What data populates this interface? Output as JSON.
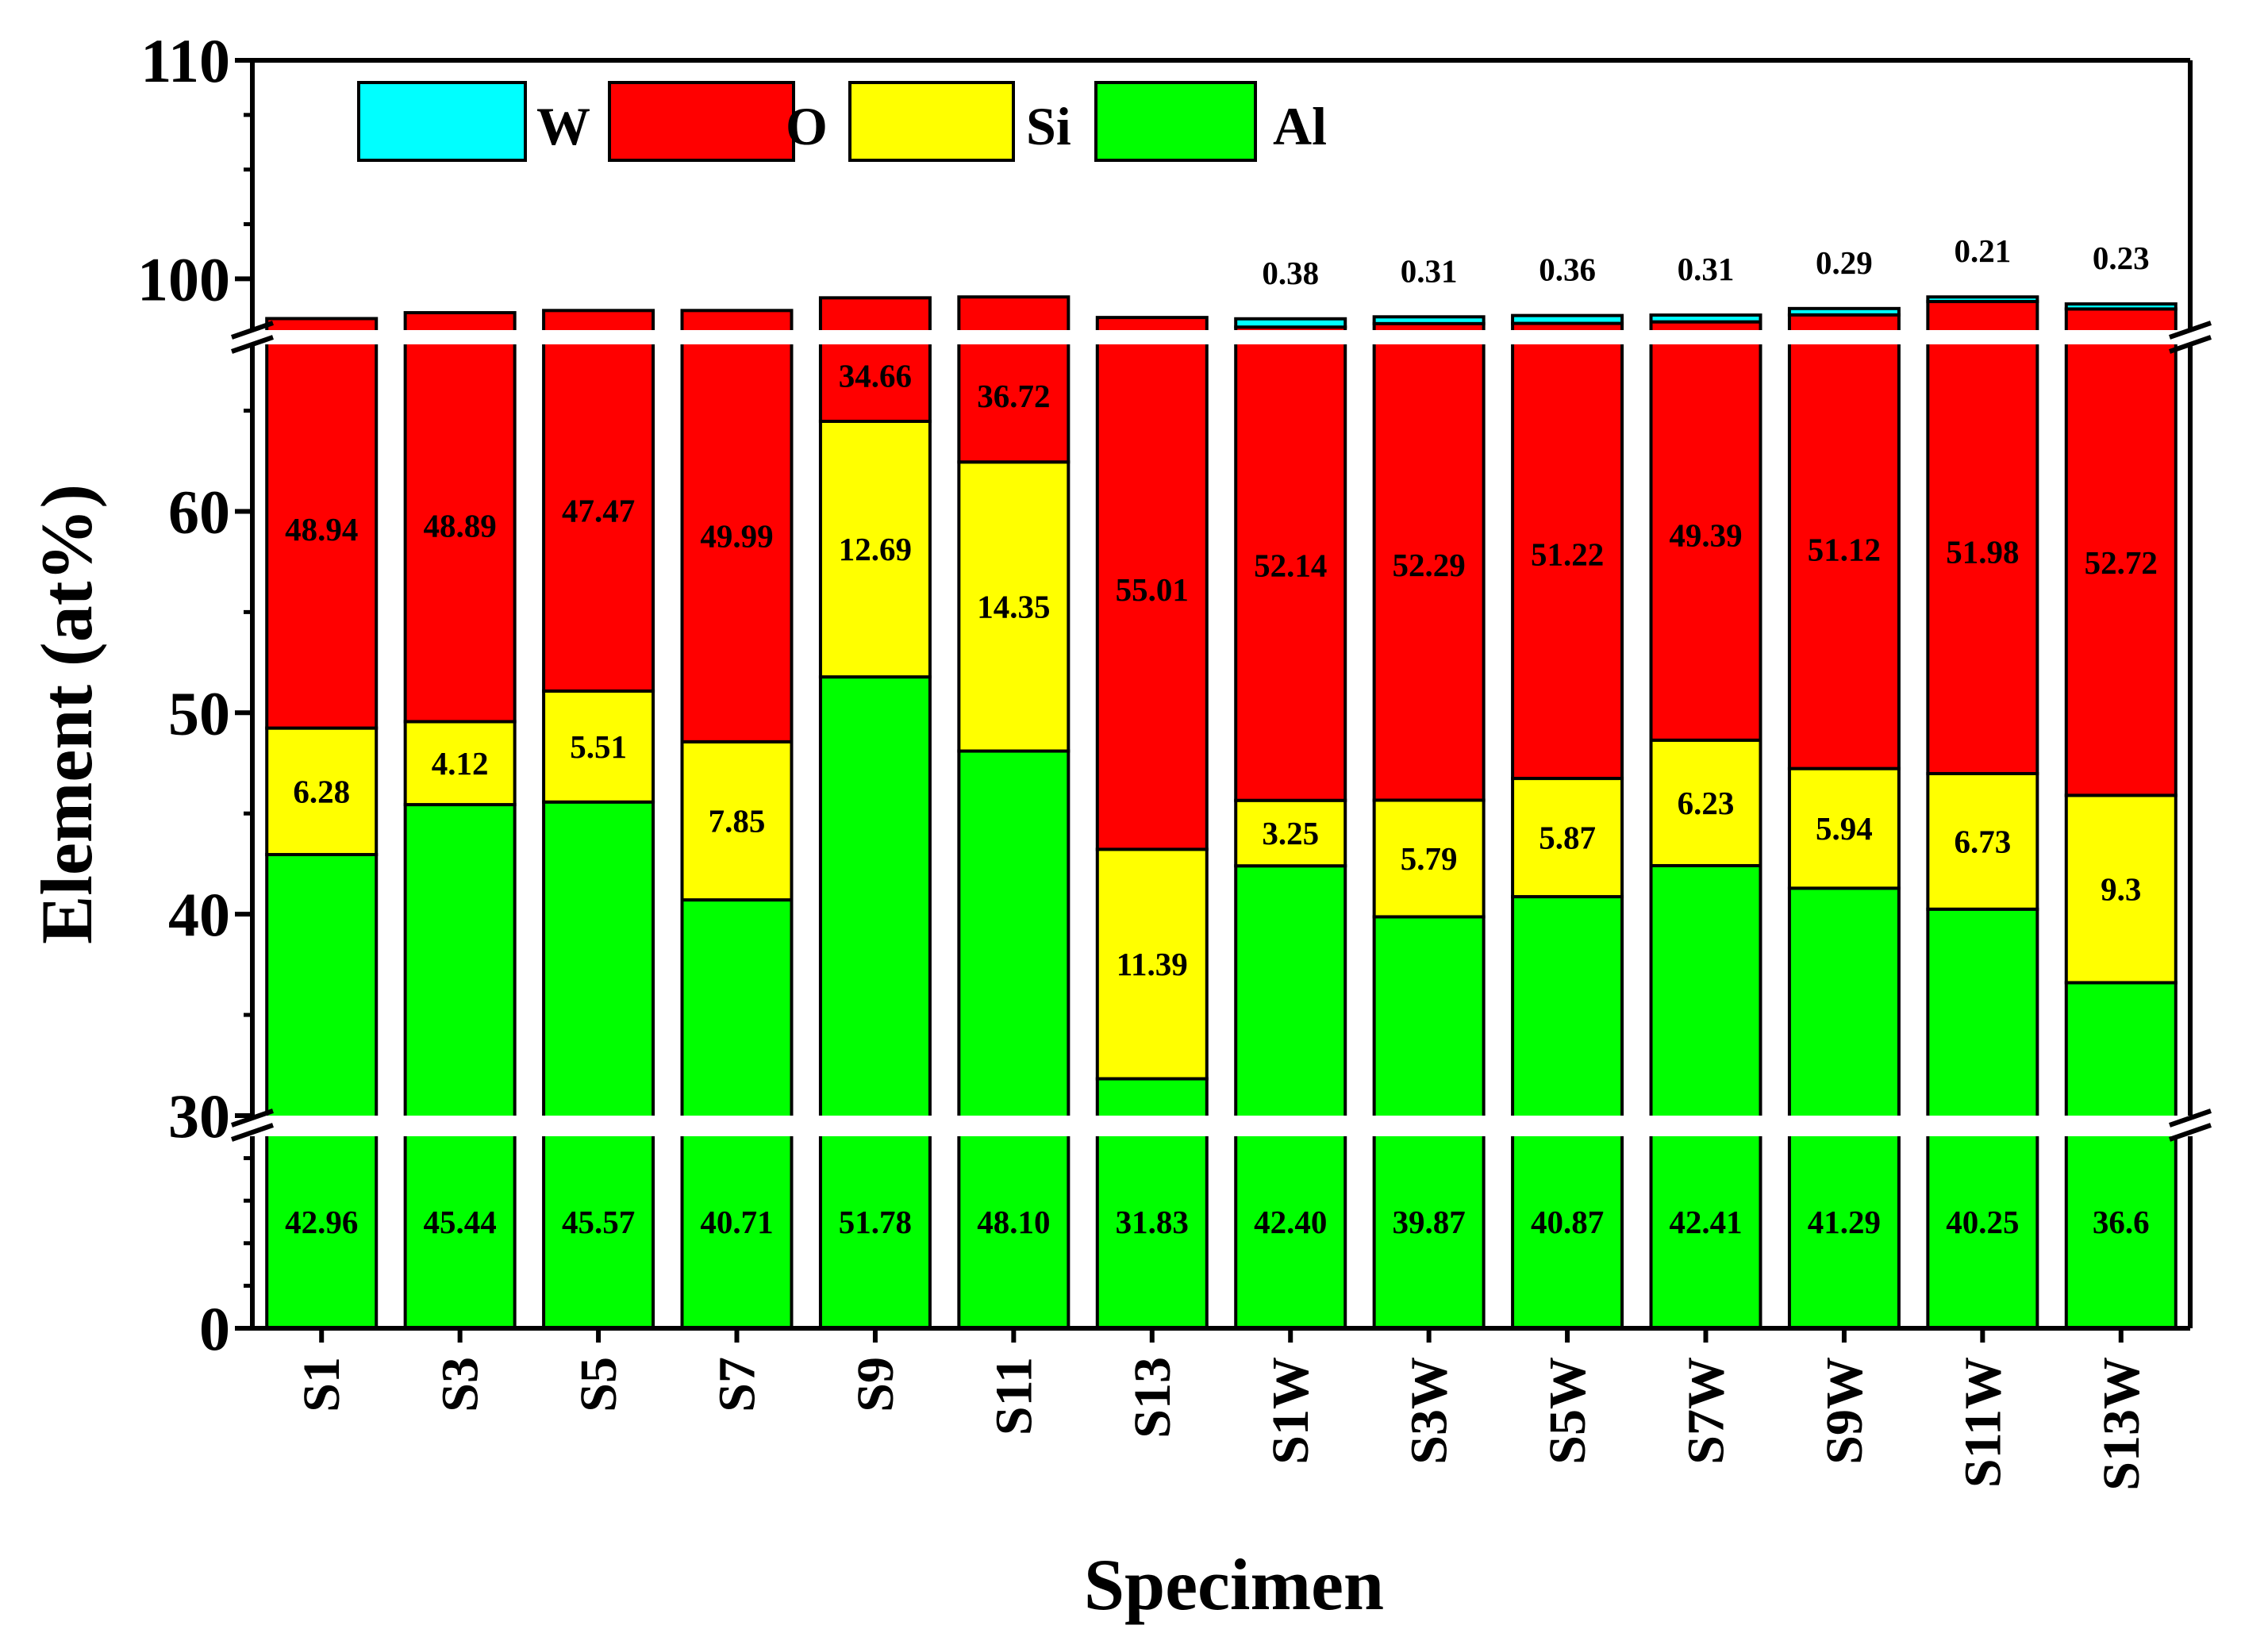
{
  "chart_data": {
    "type": "bar",
    "stacked": true,
    "broken_axis": true,
    "xlabel": "Specimen",
    "ylabel": "Element (at%)",
    "categories": [
      "S1",
      "S3",
      "S5",
      "S7",
      "S9",
      "S11",
      "S13",
      "S1W",
      "S3W",
      "S5W",
      "S7W",
      "S9W",
      "S11W",
      "S13W"
    ],
    "series": [
      {
        "name": "Al",
        "color": "#00ff00",
        "values": [
          42.96,
          45.44,
          45.57,
          40.71,
          51.78,
          48.1,
          31.83,
          42.4,
          39.87,
          40.87,
          42.41,
          41.29,
          40.25,
          36.6
        ],
        "labels": [
          "42.96",
          "45.44",
          "45.57",
          "40.71",
          "51.78",
          "48.10",
          "31.83",
          "42.40",
          "39.87",
          "40.87",
          "42.41",
          "41.29",
          "40.25",
          "36.6"
        ]
      },
      {
        "name": "Si",
        "color": "#ffff00",
        "values": [
          6.28,
          4.12,
          5.51,
          7.85,
          12.69,
          14.35,
          11.39,
          3.25,
          5.79,
          5.87,
          6.23,
          5.94,
          6.73,
          9.3
        ],
        "labels": [
          "6.28",
          "4.12",
          "5.51",
          "7.85",
          "12.69",
          "14.35",
          "11.39",
          "3.25",
          "5.79",
          "5.87",
          "6.23",
          "5.94",
          "6.73",
          "9.3"
        ]
      },
      {
        "name": "O",
        "color": "#ff0000",
        "values": [
          48.94,
          48.89,
          47.47,
          49.99,
          34.66,
          36.72,
          55.01,
          52.14,
          52.29,
          51.22,
          49.39,
          51.12,
          51.98,
          52.72
        ],
        "labels": [
          "48.94",
          "48.89",
          "47.47",
          "49.99",
          "34.66",
          "36.72",
          "55.01",
          "52.14",
          "52.29",
          "51.22",
          "49.39",
          "51.12",
          "51.98",
          "52.72"
        ]
      },
      {
        "name": "W",
        "color": "#00ffff",
        "values": [
          0,
          0,
          0,
          0,
          0,
          0,
          0,
          0.38,
          0.31,
          0.36,
          0.31,
          0.29,
          0.21,
          0.23
        ],
        "labels": [
          "",
          "",
          "",
          "",
          "",
          "",
          "",
          "0.38",
          "0.31",
          "0.36",
          "0.31",
          "0.29",
          "0.21",
          "0.23"
        ]
      }
    ],
    "legend": {
      "placement": "top-left",
      "order": [
        "W",
        "O",
        "Si",
        "Al"
      ]
    },
    "y_segments": [
      {
        "range": [
          0,
          30
        ],
        "ticks": [
          "0",
          "30"
        ]
      },
      {
        "range": [
          30,
          69
        ],
        "ticks": [
          "30",
          "40",
          "50",
          "60"
        ]
      },
      {
        "range": [
          97,
          110
        ],
        "ticks": [
          "100",
          "110"
        ]
      }
    ]
  }
}
